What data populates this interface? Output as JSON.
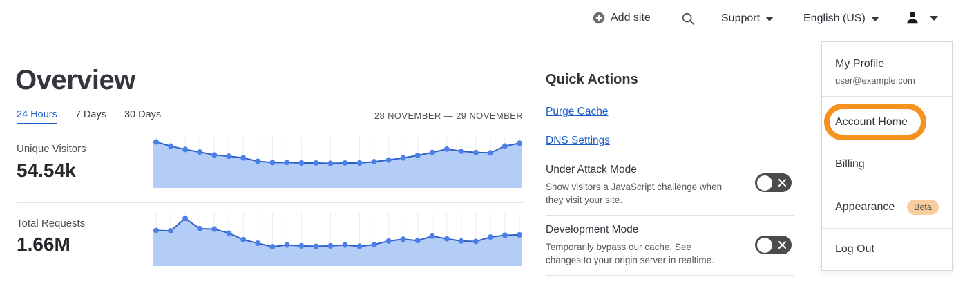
{
  "header": {
    "add_site_label": "Add site",
    "support_label": "Support",
    "language_label": "English (US)"
  },
  "overview": {
    "title": "Overview",
    "tabs": [
      {
        "label": "24 Hours",
        "active": true
      },
      {
        "label": "7 Days",
        "active": false
      },
      {
        "label": "30 Days",
        "active": false
      }
    ],
    "date_range": "28 NOVEMBER — 29 NOVEMBER",
    "metrics": [
      {
        "label": "Unique Visitors",
        "value": "54.54k"
      },
      {
        "label": "Total Requests",
        "value": "1.66M"
      }
    ]
  },
  "quick_actions": {
    "title": "Quick Actions",
    "links": [
      {
        "label": "Purge Cache"
      },
      {
        "label": "DNS Settings"
      }
    ],
    "toggles": [
      {
        "label": "Under Attack Mode",
        "description": "Show visitors a JavaScript challenge when they visit your site.",
        "state": "off"
      },
      {
        "label": "Development Mode",
        "description": "Temporarily bypass our cache. See changes to your origin server in realtime.",
        "state": "off"
      }
    ]
  },
  "account_menu": {
    "profile_label": "My Profile",
    "profile_email": "user@example.com",
    "items": [
      {
        "label": "Account Home",
        "highlighted": true
      },
      {
        "label": "Billing"
      },
      {
        "label": "Appearance",
        "badge": "Beta"
      },
      {
        "label": "Log Out"
      }
    ]
  },
  "chart_data": [
    {
      "type": "area",
      "title": "Unique Visitors",
      "total_label": "54.54k",
      "period": "24 Hours, 28 November — 29 November",
      "axes_note": "no axis tick labels rendered in UI; values normalized 0-1 of chart height",
      "grid": "vertical gridlines at each point",
      "values_normalized": [
        0.96,
        0.86,
        0.78,
        0.72,
        0.65,
        0.62,
        0.58,
        0.5,
        0.47,
        0.47,
        0.46,
        0.46,
        0.45,
        0.46,
        0.46,
        0.49,
        0.53,
        0.58,
        0.64,
        0.71,
        0.79,
        0.74,
        0.71,
        0.7,
        0.86,
        0.93
      ]
    },
    {
      "type": "area",
      "title": "Total Requests",
      "total_label": "1.66M",
      "period": "24 Hours, 28 November — 29 November",
      "axes_note": "no axis tick labels rendered in UI; values normalized 0-1 of chart height",
      "grid": "vertical gridlines at each point",
      "values_normalized": [
        0.68,
        0.67,
        0.95,
        0.72,
        0.71,
        0.62,
        0.47,
        0.39,
        0.31,
        0.35,
        0.33,
        0.32,
        0.33,
        0.35,
        0.32,
        0.36,
        0.44,
        0.48,
        0.45,
        0.55,
        0.49,
        0.44,
        0.43,
        0.53,
        0.57,
        0.58
      ]
    }
  ],
  "colors": {
    "accent_orange": "#f6921e",
    "link_blue": "#1a5ecb",
    "chart_fill": "#b4cdf6",
    "chart_line": "#2e5fc7",
    "chart_dot": "#4a80e8",
    "chart_grid": "#ebebeb",
    "toggle_off_bg": "#4b4b4b",
    "beta_badge_bg": "#f8cda1"
  }
}
